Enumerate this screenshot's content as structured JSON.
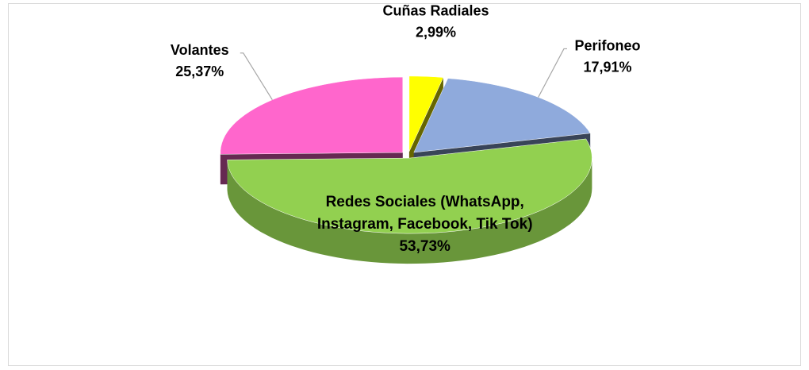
{
  "chart_data": {
    "type": "pie",
    "categories": [
      "Cuñas Radiales",
      "Perifoneo",
      "Redes Sociales (WhatsApp, Instagram, Facebook, Tik Tok)",
      "Volantes"
    ],
    "values": [
      2.99,
      17.91,
      53.73,
      25.37
    ],
    "value_labels": [
      "2,99%",
      "17,91%",
      "53,73%",
      "25,37%"
    ],
    "colors": [
      "#ffff00",
      "#8faadc",
      "#92d050",
      "#ff66cc"
    ]
  }
}
